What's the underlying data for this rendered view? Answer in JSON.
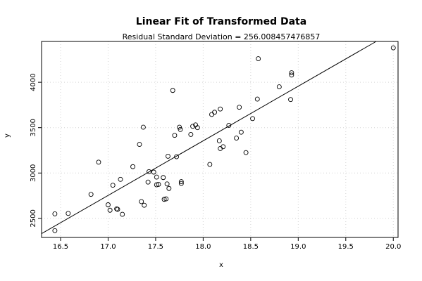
{
  "chart_data": {
    "type": "scatter",
    "title": "Linear Fit of Transformed Data",
    "subtitle": "Residual Standard Deviation =  256.008457476857",
    "xlabel": "x",
    "ylabel": "y",
    "xlim": [
      16.3,
      20.05
    ],
    "ylim": [
      2290,
      4450
    ],
    "xticks": [
      16.5,
      17.0,
      17.5,
      18.0,
      18.5,
      19.0,
      19.5,
      20.0
    ],
    "xtick_labels": [
      "16.5",
      "17.0",
      "17.5",
      "18.0",
      "18.5",
      "19.0",
      "19.5",
      "20.0"
    ],
    "yticks": [
      2500,
      3000,
      3500,
      4000
    ],
    "ytick_labels": [
      "2500",
      "3000",
      "3500",
      "4000"
    ],
    "grid": true,
    "points": [
      {
        "x": 16.44,
        "y": 2550
      },
      {
        "x": 16.44,
        "y": 2365
      },
      {
        "x": 16.58,
        "y": 2555
      },
      {
        "x": 16.82,
        "y": 2765
      },
      {
        "x": 16.9,
        "y": 3120
      },
      {
        "x": 17.0,
        "y": 2650
      },
      {
        "x": 17.02,
        "y": 2590
      },
      {
        "x": 17.05,
        "y": 2865
      },
      {
        "x": 17.09,
        "y": 2605
      },
      {
        "x": 17.1,
        "y": 2600
      },
      {
        "x": 17.13,
        "y": 2930
      },
      {
        "x": 17.15,
        "y": 2545
      },
      {
        "x": 17.26,
        "y": 3070
      },
      {
        "x": 17.33,
        "y": 3315
      },
      {
        "x": 17.35,
        "y": 2685
      },
      {
        "x": 17.37,
        "y": 3505
      },
      {
        "x": 17.38,
        "y": 2645
      },
      {
        "x": 17.42,
        "y": 2900
      },
      {
        "x": 17.43,
        "y": 3015
      },
      {
        "x": 17.48,
        "y": 3010
      },
      {
        "x": 17.51,
        "y": 2955
      },
      {
        "x": 17.51,
        "y": 2870
      },
      {
        "x": 17.53,
        "y": 2875
      },
      {
        "x": 17.58,
        "y": 2950
      },
      {
        "x": 17.59,
        "y": 2710
      },
      {
        "x": 17.61,
        "y": 2715
      },
      {
        "x": 17.62,
        "y": 2880
      },
      {
        "x": 17.63,
        "y": 3185
      },
      {
        "x": 17.64,
        "y": 2830
      },
      {
        "x": 17.68,
        "y": 3910
      },
      {
        "x": 17.7,
        "y": 3415
      },
      {
        "x": 17.72,
        "y": 3180
      },
      {
        "x": 17.75,
        "y": 3505
      },
      {
        "x": 17.76,
        "y": 3480
      },
      {
        "x": 17.77,
        "y": 2885
      },
      {
        "x": 17.77,
        "y": 2905
      },
      {
        "x": 17.87,
        "y": 3425
      },
      {
        "x": 17.89,
        "y": 3515
      },
      {
        "x": 17.92,
        "y": 3530
      },
      {
        "x": 17.94,
        "y": 3500
      },
      {
        "x": 18.07,
        "y": 3095
      },
      {
        "x": 18.09,
        "y": 3645
      },
      {
        "x": 18.12,
        "y": 3670
      },
      {
        "x": 18.17,
        "y": 3355
      },
      {
        "x": 18.18,
        "y": 3705
      },
      {
        "x": 18.18,
        "y": 3270
      },
      {
        "x": 18.21,
        "y": 3290
      },
      {
        "x": 18.27,
        "y": 3525
      },
      {
        "x": 18.35,
        "y": 3385
      },
      {
        "x": 18.38,
        "y": 3725
      },
      {
        "x": 18.4,
        "y": 3450
      },
      {
        "x": 18.45,
        "y": 3225
      },
      {
        "x": 18.52,
        "y": 3600
      },
      {
        "x": 18.57,
        "y": 3815
      },
      {
        "x": 18.58,
        "y": 4260
      },
      {
        "x": 18.8,
        "y": 3950
      },
      {
        "x": 18.92,
        "y": 3810
      },
      {
        "x": 18.93,
        "y": 4080
      },
      {
        "x": 18.93,
        "y": 4105
      },
      {
        "x": 20.0,
        "y": 4380
      }
    ],
    "fit_line": {
      "x": [
        16.3,
        19.82
      ],
      "y": [
        2332,
        4450
      ]
    }
  }
}
